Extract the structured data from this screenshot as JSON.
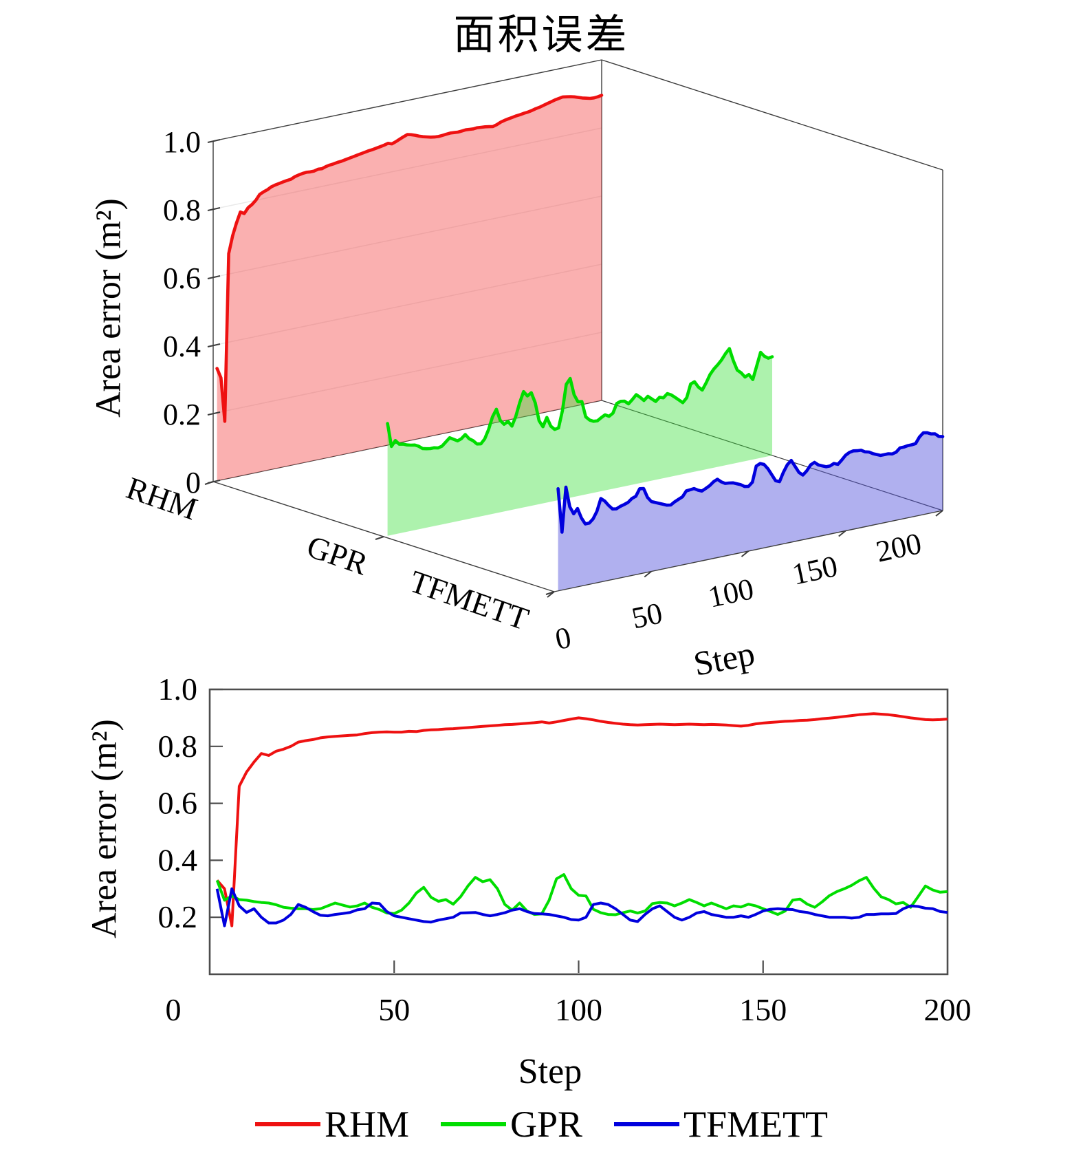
{
  "title": "面积误差",
  "chart_data": {
    "type": [
      "ribbon3d",
      "line"
    ],
    "title": "面积误差",
    "xlabel": "Step",
    "ylabel": "Area error (m²)",
    "xlim": [
      0,
      200
    ],
    "ylim": [
      0,
      1
    ],
    "x_start": 2,
    "x_step": 2,
    "xticks": [
      0,
      50,
      100,
      150,
      200
    ],
    "zticks_3d": [
      "0",
      "0.2",
      "0.4",
      "0.6",
      "0.8",
      "1.0"
    ],
    "yticks_2d": [
      "0.2",
      "0.4",
      "0.6",
      "0.8",
      "1.0"
    ],
    "series_axis_labels": [
      "RHM",
      "GPR",
      "TFMETT"
    ],
    "grid": "z-gridlines on back wall of 3d box",
    "legend_position": "below bottom plot, horizontal",
    "series": [
      {
        "name": "RHM",
        "color": "#ee1111",
        "fill": "rgba(244,80,80,0.45)",
        "values": [
          0.33,
          0.3,
          0.17,
          0.66,
          0.71,
          0.745,
          0.775,
          0.768,
          0.783,
          0.79,
          0.8,
          0.815,
          0.82,
          0.824,
          0.83,
          0.833,
          0.835,
          0.837,
          0.839,
          0.84,
          0.845,
          0.848,
          0.85,
          0.851,
          0.85,
          0.85,
          0.853,
          0.852,
          0.856,
          0.858,
          0.859,
          0.861,
          0.862,
          0.864,
          0.866,
          0.868,
          0.87,
          0.872,
          0.874,
          0.876,
          0.877,
          0.879,
          0.881,
          0.883,
          0.886,
          0.882,
          0.886,
          0.891,
          0.896,
          0.9,
          0.897,
          0.893,
          0.888,
          0.884,
          0.881,
          0.878,
          0.876,
          0.875,
          0.876,
          0.877,
          0.878,
          0.877,
          0.876,
          0.877,
          0.878,
          0.877,
          0.876,
          0.877,
          0.876,
          0.875,
          0.873,
          0.871,
          0.874,
          0.879,
          0.882,
          0.884,
          0.886,
          0.888,
          0.889,
          0.891,
          0.892,
          0.894,
          0.897,
          0.899,
          0.902,
          0.905,
          0.908,
          0.911,
          0.913,
          0.915,
          0.913,
          0.911,
          0.908,
          0.904,
          0.9,
          0.897,
          0.894,
          0.893,
          0.894,
          0.896
        ]
      },
      {
        "name": "GPR",
        "color": "#00dd00",
        "fill": "rgba(60,225,60,0.42)",
        "values": [
          0.33,
          0.26,
          0.275,
          0.262,
          0.26,
          0.255,
          0.252,
          0.25,
          0.244,
          0.235,
          0.232,
          0.23,
          0.23,
          0.227,
          0.23,
          0.24,
          0.25,
          0.243,
          0.236,
          0.24,
          0.25,
          0.235,
          0.227,
          0.215,
          0.213,
          0.225,
          0.25,
          0.285,
          0.305,
          0.27,
          0.256,
          0.262,
          0.246,
          0.272,
          0.31,
          0.34,
          0.325,
          0.332,
          0.3,
          0.245,
          0.225,
          0.25,
          0.222,
          0.21,
          0.212,
          0.26,
          0.335,
          0.35,
          0.3,
          0.277,
          0.275,
          0.228,
          0.216,
          0.21,
          0.209,
          0.216,
          0.222,
          0.215,
          0.222,
          0.248,
          0.252,
          0.25,
          0.24,
          0.25,
          0.262,
          0.252,
          0.24,
          0.25,
          0.24,
          0.23,
          0.24,
          0.236,
          0.246,
          0.24,
          0.23,
          0.22,
          0.21,
          0.222,
          0.26,
          0.264,
          0.246,
          0.235,
          0.254,
          0.276,
          0.29,
          0.3,
          0.312,
          0.328,
          0.34,
          0.302,
          0.272,
          0.262,
          0.247,
          0.252,
          0.235,
          0.272,
          0.31,
          0.296,
          0.288,
          0.29
        ]
      },
      {
        "name": "TFMETT",
        "color": "#0000dd",
        "fill": "rgba(80,80,220,0.45)",
        "values": [
          0.3,
          0.17,
          0.3,
          0.24,
          0.217,
          0.23,
          0.2,
          0.18,
          0.18,
          0.19,
          0.21,
          0.245,
          0.235,
          0.22,
          0.207,
          0.205,
          0.21,
          0.213,
          0.217,
          0.226,
          0.23,
          0.25,
          0.248,
          0.22,
          0.205,
          0.2,
          0.195,
          0.19,
          0.185,
          0.183,
          0.19,
          0.195,
          0.2,
          0.215,
          0.216,
          0.217,
          0.21,
          0.205,
          0.21,
          0.216,
          0.225,
          0.23,
          0.22,
          0.213,
          0.212,
          0.21,
          0.205,
          0.2,
          0.192,
          0.19,
          0.2,
          0.245,
          0.25,
          0.245,
          0.23,
          0.21,
          0.19,
          0.185,
          0.21,
          0.23,
          0.24,
          0.22,
          0.2,
          0.19,
          0.2,
          0.215,
          0.22,
          0.21,
          0.205,
          0.2,
          0.2,
          0.205,
          0.2,
          0.21,
          0.222,
          0.228,
          0.23,
          0.228,
          0.227,
          0.22,
          0.217,
          0.21,
          0.205,
          0.2,
          0.2,
          0.2,
          0.197,
          0.2,
          0.21,
          0.21,
          0.212,
          0.212,
          0.213,
          0.23,
          0.24,
          0.238,
          0.232,
          0.23,
          0.22,
          0.217
        ]
      }
    ]
  }
}
